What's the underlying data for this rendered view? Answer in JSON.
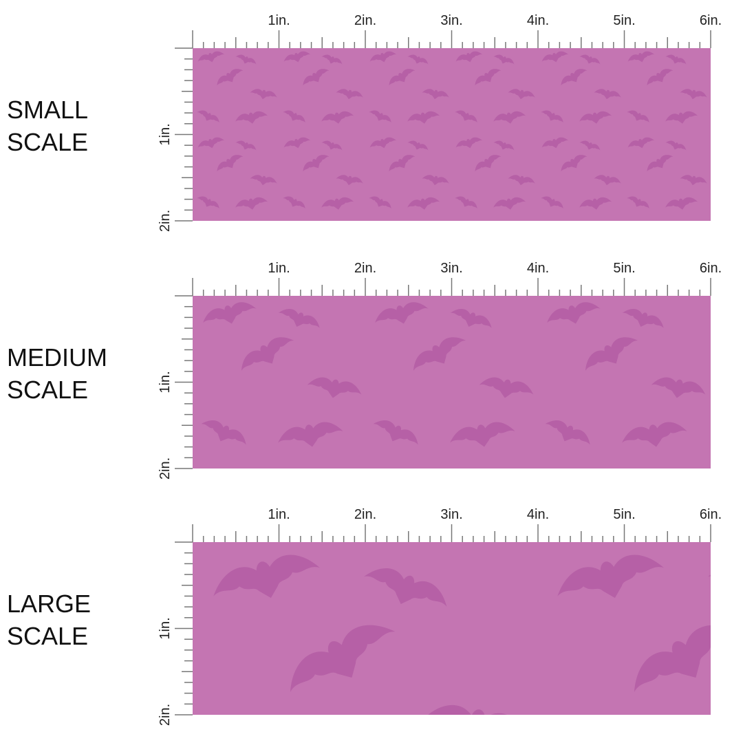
{
  "panels": [
    {
      "label_lines": [
        "SMALL",
        "SCALE"
      ],
      "top_ruler": [
        "1in.",
        "2in.",
        "3in.",
        "4in.",
        "5in.",
        "6in."
      ],
      "side_ruler": [
        "1in.",
        "2in."
      ]
    },
    {
      "label_lines": [
        "MEDIUM",
        "SCALE"
      ],
      "top_ruler": [
        "1in.",
        "2in.",
        "3in.",
        "4in.",
        "5in.",
        "6in."
      ],
      "side_ruler": [
        "1in.",
        "2in."
      ]
    },
    {
      "label_lines": [
        "LARGE",
        "SCALE"
      ],
      "top_ruler": [
        "1in.",
        "2in.",
        "3in.",
        "4in.",
        "5in.",
        "6in."
      ],
      "side_ruler": [
        "1in.",
        "2in."
      ]
    }
  ]
}
